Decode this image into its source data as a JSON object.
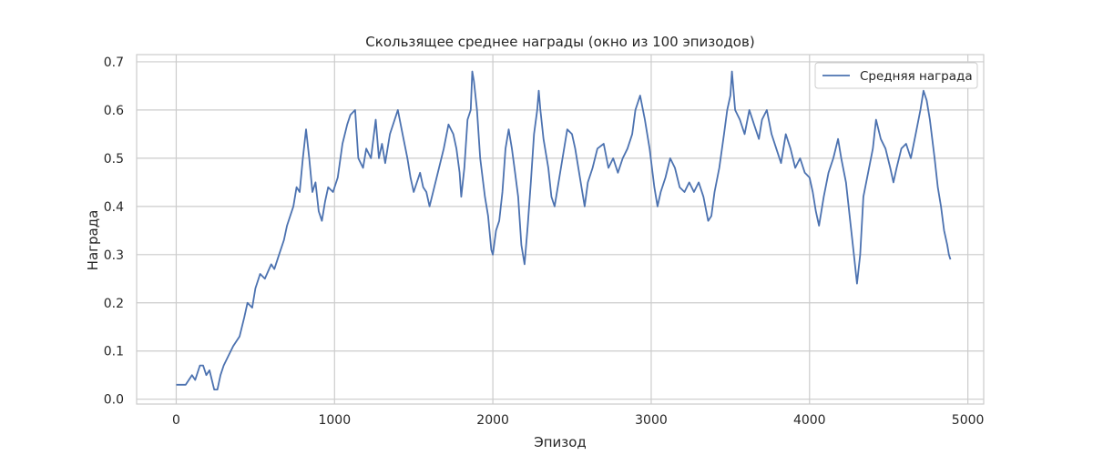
{
  "chart_data": {
    "type": "line",
    "title": "Скользящее среднее награды (окно из 100 эпизодов)",
    "xlabel": "Эпизод",
    "ylabel": "Награда",
    "xlim": [
      -250,
      5100
    ],
    "ylim": [
      -0.01,
      0.715
    ],
    "xticks": [
      0,
      1000,
      2000,
      3000,
      4000,
      5000
    ],
    "yticks": [
      0.0,
      0.1,
      0.2,
      0.3,
      0.4,
      0.5,
      0.6,
      0.7
    ],
    "grid": true,
    "legend_position": "top-right",
    "series": [
      {
        "name": "Средняя награда",
        "color": "#4c72b0",
        "points": [
          [
            0,
            0.03
          ],
          [
            60,
            0.03
          ],
          [
            100,
            0.05
          ],
          [
            120,
            0.04
          ],
          [
            150,
            0.07
          ],
          [
            170,
            0.07
          ],
          [
            190,
            0.05
          ],
          [
            210,
            0.06
          ],
          [
            240,
            0.02
          ],
          [
            260,
            0.02
          ],
          [
            280,
            0.05
          ],
          [
            300,
            0.07
          ],
          [
            330,
            0.09
          ],
          [
            360,
            0.11
          ],
          [
            400,
            0.13
          ],
          [
            430,
            0.17
          ],
          [
            450,
            0.2
          ],
          [
            480,
            0.19
          ],
          [
            500,
            0.23
          ],
          [
            530,
            0.26
          ],
          [
            560,
            0.25
          ],
          [
            600,
            0.28
          ],
          [
            620,
            0.27
          ],
          [
            650,
            0.3
          ],
          [
            680,
            0.33
          ],
          [
            700,
            0.36
          ],
          [
            720,
            0.38
          ],
          [
            740,
            0.4
          ],
          [
            760,
            0.44
          ],
          [
            780,
            0.43
          ],
          [
            800,
            0.5
          ],
          [
            820,
            0.56
          ],
          [
            840,
            0.5
          ],
          [
            860,
            0.43
          ],
          [
            880,
            0.45
          ],
          [
            900,
            0.39
          ],
          [
            920,
            0.37
          ],
          [
            940,
            0.41
          ],
          [
            960,
            0.44
          ],
          [
            990,
            0.43
          ],
          [
            1020,
            0.46
          ],
          [
            1050,
            0.53
          ],
          [
            1080,
            0.57
          ],
          [
            1100,
            0.59
          ],
          [
            1130,
            0.6
          ],
          [
            1150,
            0.5
          ],
          [
            1180,
            0.48
          ],
          [
            1200,
            0.52
          ],
          [
            1230,
            0.5
          ],
          [
            1260,
            0.58
          ],
          [
            1280,
            0.5
          ],
          [
            1300,
            0.53
          ],
          [
            1320,
            0.49
          ],
          [
            1350,
            0.55
          ],
          [
            1380,
            0.58
          ],
          [
            1400,
            0.6
          ],
          [
            1430,
            0.55
          ],
          [
            1460,
            0.5
          ],
          [
            1480,
            0.46
          ],
          [
            1500,
            0.43
          ],
          [
            1520,
            0.45
          ],
          [
            1540,
            0.47
          ],
          [
            1560,
            0.44
          ],
          [
            1580,
            0.43
          ],
          [
            1600,
            0.4
          ],
          [
            1630,
            0.44
          ],
          [
            1660,
            0.48
          ],
          [
            1690,
            0.52
          ],
          [
            1720,
            0.57
          ],
          [
            1750,
            0.55
          ],
          [
            1770,
            0.52
          ],
          [
            1790,
            0.47
          ],
          [
            1800,
            0.42
          ],
          [
            1820,
            0.48
          ],
          [
            1840,
            0.58
          ],
          [
            1860,
            0.6
          ],
          [
            1870,
            0.68
          ],
          [
            1880,
            0.66
          ],
          [
            1900,
            0.6
          ],
          [
            1920,
            0.5
          ],
          [
            1950,
            0.42
          ],
          [
            1970,
            0.38
          ],
          [
            1990,
            0.31
          ],
          [
            2000,
            0.3
          ],
          [
            2020,
            0.35
          ],
          [
            2040,
            0.37
          ],
          [
            2060,
            0.43
          ],
          [
            2080,
            0.52
          ],
          [
            2100,
            0.56
          ],
          [
            2120,
            0.52
          ],
          [
            2140,
            0.47
          ],
          [
            2160,
            0.42
          ],
          [
            2180,
            0.32
          ],
          [
            2200,
            0.28
          ],
          [
            2220,
            0.36
          ],
          [
            2240,
            0.45
          ],
          [
            2260,
            0.55
          ],
          [
            2280,
            0.6
          ],
          [
            2290,
            0.64
          ],
          [
            2300,
            0.6
          ],
          [
            2320,
            0.54
          ],
          [
            2350,
            0.48
          ],
          [
            2370,
            0.42
          ],
          [
            2390,
            0.4
          ],
          [
            2420,
            0.46
          ],
          [
            2440,
            0.5
          ],
          [
            2470,
            0.56
          ],
          [
            2500,
            0.55
          ],
          [
            2520,
            0.52
          ],
          [
            2550,
            0.46
          ],
          [
            2580,
            0.4
          ],
          [
            2600,
            0.45
          ],
          [
            2630,
            0.48
          ],
          [
            2660,
            0.52
          ],
          [
            2700,
            0.53
          ],
          [
            2730,
            0.48
          ],
          [
            2760,
            0.5
          ],
          [
            2790,
            0.47
          ],
          [
            2820,
            0.5
          ],
          [
            2850,
            0.52
          ],
          [
            2880,
            0.55
          ],
          [
            2900,
            0.6
          ],
          [
            2930,
            0.63
          ],
          [
            2960,
            0.58
          ],
          [
            2990,
            0.52
          ],
          [
            3020,
            0.44
          ],
          [
            3040,
            0.4
          ],
          [
            3060,
            0.43
          ],
          [
            3090,
            0.46
          ],
          [
            3120,
            0.5
          ],
          [
            3150,
            0.48
          ],
          [
            3180,
            0.44
          ],
          [
            3210,
            0.43
          ],
          [
            3240,
            0.45
          ],
          [
            3270,
            0.43
          ],
          [
            3300,
            0.45
          ],
          [
            3330,
            0.42
          ],
          [
            3360,
            0.37
          ],
          [
            3380,
            0.38
          ],
          [
            3400,
            0.43
          ],
          [
            3430,
            0.48
          ],
          [
            3460,
            0.55
          ],
          [
            3480,
            0.6
          ],
          [
            3500,
            0.63
          ],
          [
            3510,
            0.68
          ],
          [
            3530,
            0.6
          ],
          [
            3560,
            0.58
          ],
          [
            3590,
            0.55
          ],
          [
            3620,
            0.6
          ],
          [
            3650,
            0.57
          ],
          [
            3680,
            0.54
          ],
          [
            3700,
            0.58
          ],
          [
            3730,
            0.6
          ],
          [
            3760,
            0.55
          ],
          [
            3790,
            0.52
          ],
          [
            3820,
            0.49
          ],
          [
            3850,
            0.55
          ],
          [
            3880,
            0.52
          ],
          [
            3910,
            0.48
          ],
          [
            3940,
            0.5
          ],
          [
            3970,
            0.47
          ],
          [
            4000,
            0.46
          ],
          [
            4020,
            0.43
          ],
          [
            4040,
            0.39
          ],
          [
            4060,
            0.36
          ],
          [
            4090,
            0.42
          ],
          [
            4120,
            0.47
          ],
          [
            4150,
            0.5
          ],
          [
            4180,
            0.54
          ],
          [
            4200,
            0.5
          ],
          [
            4230,
            0.45
          ],
          [
            4260,
            0.36
          ],
          [
            4280,
            0.3
          ],
          [
            4300,
            0.24
          ],
          [
            4320,
            0.3
          ],
          [
            4340,
            0.42
          ],
          [
            4370,
            0.47
          ],
          [
            4400,
            0.52
          ],
          [
            4420,
            0.58
          ],
          [
            4450,
            0.54
          ],
          [
            4480,
            0.52
          ],
          [
            4510,
            0.48
          ],
          [
            4530,
            0.45
          ],
          [
            4550,
            0.48
          ],
          [
            4580,
            0.52
          ],
          [
            4610,
            0.53
          ],
          [
            4640,
            0.5
          ],
          [
            4670,
            0.55
          ],
          [
            4700,
            0.6
          ],
          [
            4720,
            0.64
          ],
          [
            4740,
            0.62
          ],
          [
            4760,
            0.58
          ],
          [
            4790,
            0.5
          ],
          [
            4810,
            0.44
          ],
          [
            4830,
            0.4
          ],
          [
            4850,
            0.35
          ],
          [
            4870,
            0.32
          ],
          [
            4880,
            0.3
          ],
          [
            4890,
            0.29
          ]
        ]
      }
    ]
  }
}
